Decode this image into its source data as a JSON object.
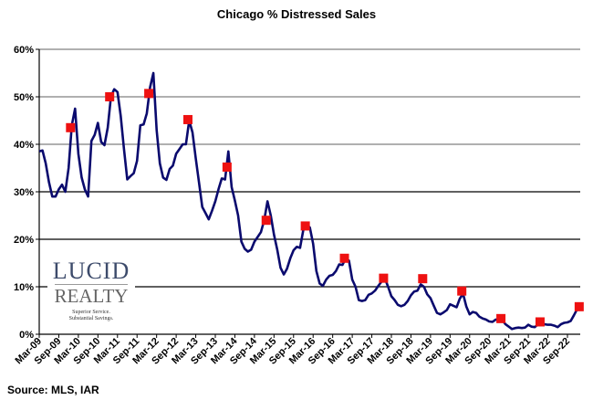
{
  "chart_data": {
    "type": "line",
    "title": "Chicago % Distressed Sales",
    "xlabel": "",
    "ylabel": "",
    "ylim": [
      0,
      60
    ],
    "y_ticks": [
      "0%",
      "10%",
      "20%",
      "30%",
      "40%",
      "50%",
      "60%"
    ],
    "x_ticks": [
      "Mar-09",
      "Sep-09",
      "Mar-10",
      "Sep-10",
      "Mar-11",
      "Sep-11",
      "Mar-12",
      "Sep-12",
      "Mar-13",
      "Sep-13",
      "Mar-14",
      "Sep-14",
      "Mar-15",
      "Sep-15",
      "Mar-16",
      "Sep-16",
      "Mar-17",
      "Sep-17",
      "Mar-18",
      "Sep-18",
      "Mar-19",
      "Sep-19",
      "Mar-20",
      "Sep-20",
      "Mar-21",
      "Sep-21",
      "Mar-22",
      "Sep-22"
    ],
    "grid": true,
    "legend": "none",
    "colors": {
      "line": "#0a0a6e",
      "marker": "#ee1111"
    },
    "x": [
      "Mar-09",
      "Apr-09",
      "May-09",
      "Jun-09",
      "Jul-09",
      "Aug-09",
      "Sep-09",
      "Oct-09",
      "Nov-09",
      "Dec-09",
      "Jan-10",
      "Feb-10",
      "Mar-10",
      "Apr-10",
      "May-10",
      "Jun-10",
      "Jul-10",
      "Aug-10",
      "Sep-10",
      "Oct-10",
      "Nov-10",
      "Dec-10",
      "Jan-11",
      "Feb-11",
      "Mar-11",
      "Apr-11",
      "May-11",
      "Jun-11",
      "Jul-11",
      "Aug-11",
      "Sep-11",
      "Oct-11",
      "Nov-11",
      "Dec-11",
      "Jan-12",
      "Feb-12",
      "Mar-12",
      "Apr-12",
      "May-12",
      "Jun-12",
      "Jul-12",
      "Aug-12",
      "Sep-12",
      "Oct-12",
      "Nov-12",
      "Dec-12",
      "Jan-13",
      "Feb-13",
      "Mar-13",
      "Apr-13",
      "May-13",
      "Jun-13",
      "Jul-13",
      "Aug-13",
      "Sep-13",
      "Oct-13",
      "Nov-13",
      "Dec-13",
      "Jan-14",
      "Feb-14",
      "Mar-14",
      "Apr-14",
      "May-14",
      "Jun-14",
      "Jul-14",
      "Aug-14",
      "Sep-14",
      "Oct-14",
      "Nov-14",
      "Dec-14",
      "Jan-15",
      "Feb-15",
      "Mar-15",
      "Apr-15",
      "May-15",
      "Jun-15",
      "Jul-15",
      "Aug-15",
      "Sep-15",
      "Oct-15",
      "Nov-15",
      "Dec-15",
      "Jan-16",
      "Feb-16",
      "Mar-16",
      "Apr-16",
      "May-16",
      "Jun-16",
      "Jul-16",
      "Aug-16",
      "Sep-16",
      "Oct-16",
      "Nov-16",
      "Dec-16",
      "Jan-17",
      "Feb-17",
      "Mar-17",
      "Apr-17",
      "May-17",
      "Jun-17",
      "Jul-17",
      "Aug-17",
      "Sep-17",
      "Oct-17",
      "Nov-17",
      "Dec-17",
      "Jan-18",
      "Feb-18",
      "Mar-18",
      "Apr-18",
      "May-18",
      "Jun-18",
      "Jul-18",
      "Aug-18",
      "Sep-18",
      "Oct-18",
      "Nov-18",
      "Dec-18",
      "Jan-19",
      "Feb-19",
      "Mar-19",
      "Apr-19",
      "May-19",
      "Jun-19",
      "Jul-19",
      "Aug-19",
      "Sep-19",
      "Oct-19",
      "Nov-19",
      "Dec-19",
      "Jan-20",
      "Feb-20",
      "Mar-20",
      "Apr-20",
      "May-20",
      "Jun-20",
      "Jul-20",
      "Aug-20",
      "Sep-20",
      "Oct-20",
      "Nov-20",
      "Dec-20",
      "Jan-21",
      "Feb-21",
      "Mar-21",
      "Apr-21",
      "May-21",
      "Jun-21",
      "Jul-21",
      "Aug-21",
      "Sep-21",
      "Oct-21",
      "Nov-21",
      "Dec-21",
      "Jan-22",
      "Feb-22",
      "Mar-22",
      "Apr-22",
      "May-22",
      "Jun-22",
      "Jul-22",
      "Aug-22",
      "Sep-22",
      "Oct-22",
      "Nov-22",
      "Dec-22"
    ],
    "series": [
      {
        "values": [
          38.5,
          38.7,
          36,
          32,
          29,
          29,
          30.5,
          31.5,
          30,
          35,
          44,
          47.5,
          38,
          33,
          30.5,
          29,
          40.7,
          42,
          44.5,
          40.5,
          39.8,
          43.5,
          50,
          51.6,
          51,
          46,
          39,
          32.6,
          33.3,
          33.9,
          36.5,
          44,
          44.2,
          46.5,
          52,
          55,
          43,
          36,
          33,
          32.5,
          34.8,
          35.5,
          38,
          39,
          40,
          40,
          45,
          42.5,
          37,
          32,
          26.8,
          25.5,
          24.2,
          26,
          28,
          30.6,
          32.8,
          32.6,
          38.5,
          31,
          28.2,
          25,
          19.5,
          18,
          17.4,
          17.8,
          19.5,
          20.5,
          21.5,
          24,
          28,
          25,
          21,
          17.8,
          14,
          12.6,
          13.8,
          16,
          17.7,
          18.4,
          18.2,
          22,
          23,
          22.5,
          19.1,
          13.3,
          10.7,
          10.2,
          11.5,
          12.3,
          12.5,
          13.3,
          14.7,
          14.6,
          16,
          15.5,
          11.5,
          10,
          7.2,
          7,
          7.2,
          8.3,
          8.6,
          9.2,
          10.2,
          11.1,
          11.8,
          10,
          8,
          7.2,
          6.2,
          5.9,
          6.2,
          7,
          8.2,
          9,
          9.2,
          10.5,
          10,
          8.4,
          7.6,
          6,
          4.5,
          4.2,
          4.6,
          5.1,
          6.3,
          6,
          5.7,
          7.5,
          8.5,
          5.8,
          4.2,
          4.7,
          4.5,
          3.7,
          3.3,
          3.1,
          2.7,
          2.6,
          3.1,
          3.1,
          3,
          2.1,
          1.6,
          1.1,
          1.3,
          1.4,
          1.3,
          1.4,
          2,
          1.6,
          1.5,
          2.1,
          2.2,
          2.1,
          2,
          2,
          1.8,
          1.5,
          2.1,
          2.4,
          2.5,
          2.8,
          4,
          5.3
        ]
      }
    ],
    "markers": [
      {
        "x": "Dec-09",
        "value": 43.5
      },
      {
        "x": "Dec-10",
        "value": 50
      },
      {
        "x": "Dec-11",
        "value": 50.7
      },
      {
        "x": "Dec-12",
        "value": 45.2
      },
      {
        "x": "Dec-13",
        "value": 35.2
      },
      {
        "x": "Dec-14",
        "value": 24
      },
      {
        "x": "Dec-15",
        "value": 22.8
      },
      {
        "x": "Dec-16",
        "value": 16
      },
      {
        "x": "Dec-17",
        "value": 11.8
      },
      {
        "x": "Dec-18",
        "value": 11.7
      },
      {
        "x": "Dec-19",
        "value": 9.1
      },
      {
        "x": "Dec-20",
        "value": 3.3
      },
      {
        "x": "Dec-21",
        "value": 2.6
      },
      {
        "x": "Dec-22",
        "value": 5.8
      }
    ]
  },
  "source": "Source: MLS, IAR",
  "logo": {
    "line1": "LUCID",
    "line2": "REALTY",
    "tagline1": "Superior Service.",
    "tagline2": "Substantial Savings."
  }
}
